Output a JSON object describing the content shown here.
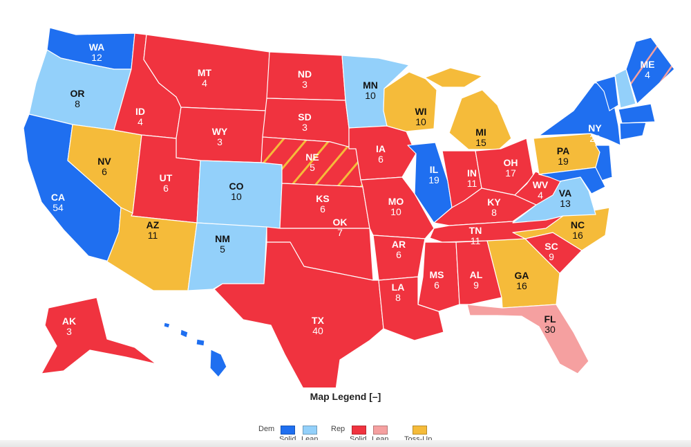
{
  "colors": {
    "dem_solid": "#1f6ff0",
    "dem_lean": "#93d0fa",
    "rep_solid": "#f0333f",
    "rep_lean": "#f5a0a0",
    "toss_up": "#f5bb3a"
  },
  "states": [
    {
      "abbr": "WA",
      "ev": "12",
      "rating": "dem_solid"
    },
    {
      "abbr": "OR",
      "ev": "8",
      "rating": "dem_lean"
    },
    {
      "abbr": "CA",
      "ev": "54",
      "rating": "dem_solid"
    },
    {
      "abbr": "NV",
      "ev": "6",
      "rating": "toss_up"
    },
    {
      "abbr": "ID",
      "ev": "4",
      "rating": "rep_solid"
    },
    {
      "abbr": "MT",
      "ev": "4",
      "rating": "rep_solid"
    },
    {
      "abbr": "WY",
      "ev": "3",
      "rating": "rep_solid"
    },
    {
      "abbr": "UT",
      "ev": "6",
      "rating": "rep_solid"
    },
    {
      "abbr": "CO",
      "ev": "10",
      "rating": "dem_lean"
    },
    {
      "abbr": "AZ",
      "ev": "11",
      "rating": "toss_up"
    },
    {
      "abbr": "NM",
      "ev": "5",
      "rating": "dem_lean"
    },
    {
      "abbr": "ND",
      "ev": "3",
      "rating": "rep_solid"
    },
    {
      "abbr": "SD",
      "ev": "3",
      "rating": "rep_solid"
    },
    {
      "abbr": "NE",
      "ev": "5",
      "rating": "rep_solid",
      "split": "toss_up"
    },
    {
      "abbr": "KS",
      "ev": "6",
      "rating": "rep_solid"
    },
    {
      "abbr": "OK",
      "ev": "7",
      "rating": "rep_solid"
    },
    {
      "abbr": "TX",
      "ev": "40",
      "rating": "rep_solid"
    },
    {
      "abbr": "MN",
      "ev": "10",
      "rating": "dem_lean"
    },
    {
      "abbr": "IA",
      "ev": "6",
      "rating": "rep_solid"
    },
    {
      "abbr": "MO",
      "ev": "10",
      "rating": "rep_solid"
    },
    {
      "abbr": "AR",
      "ev": "6",
      "rating": "rep_solid"
    },
    {
      "abbr": "LA",
      "ev": "8",
      "rating": "rep_solid"
    },
    {
      "abbr": "WI",
      "ev": "10",
      "rating": "toss_up"
    },
    {
      "abbr": "IL",
      "ev": "19",
      "rating": "dem_solid"
    },
    {
      "abbr": "MI",
      "ev": "15",
      "rating": "toss_up"
    },
    {
      "abbr": "IN",
      "ev": "11",
      "rating": "rep_solid"
    },
    {
      "abbr": "OH",
      "ev": "17",
      "rating": "rep_solid"
    },
    {
      "abbr": "KY",
      "ev": "8",
      "rating": "rep_solid"
    },
    {
      "abbr": "TN",
      "ev": "11",
      "rating": "rep_solid"
    },
    {
      "abbr": "MS",
      "ev": "6",
      "rating": "rep_solid"
    },
    {
      "abbr": "AL",
      "ev": "9",
      "rating": "rep_solid"
    },
    {
      "abbr": "GA",
      "ev": "16",
      "rating": "toss_up"
    },
    {
      "abbr": "FL",
      "ev": "30",
      "rating": "rep_lean"
    },
    {
      "abbr": "SC",
      "ev": "9",
      "rating": "rep_solid"
    },
    {
      "abbr": "NC",
      "ev": "16",
      "rating": "toss_up"
    },
    {
      "abbr": "VA",
      "ev": "13",
      "rating": "dem_lean"
    },
    {
      "abbr": "WV",
      "ev": "4",
      "rating": "rep_solid"
    },
    {
      "abbr": "PA",
      "ev": "19",
      "rating": "toss_up"
    },
    {
      "abbr": "NY",
      "ev": "28",
      "rating": "dem_solid"
    },
    {
      "abbr": "NJ",
      "rating": "dem_solid"
    },
    {
      "abbr": "MD",
      "rating": "dem_solid"
    },
    {
      "abbr": "VT",
      "rating": "dem_solid"
    },
    {
      "abbr": "NH",
      "rating": "dem_lean"
    },
    {
      "abbr": "MA",
      "rating": "dem_solid"
    },
    {
      "abbr": "CT",
      "rating": "dem_solid"
    },
    {
      "abbr": "ME",
      "ev": "4",
      "rating": "dem_solid",
      "split": "rep_lean"
    },
    {
      "abbr": "AK",
      "ev": "3",
      "rating": "rep_solid"
    },
    {
      "abbr": "HI",
      "rating": "dem_solid"
    }
  ],
  "legend": {
    "title": "Map Legend [–]",
    "dem_label": "Dem",
    "rep_label": "Rep",
    "solid_label": "Solid",
    "lean_label": "Lean",
    "toss_label": "Toss-Up"
  }
}
